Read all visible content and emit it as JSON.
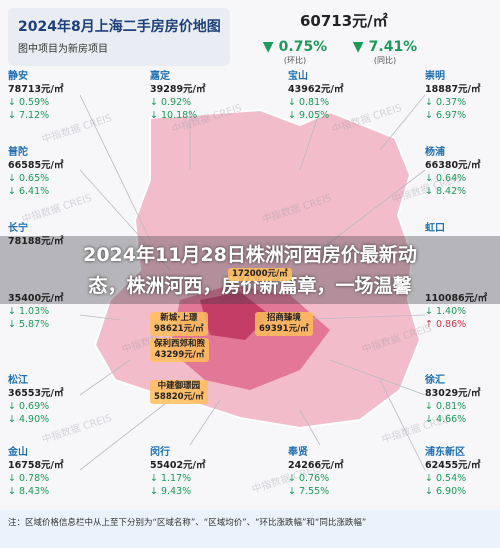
{
  "header": {
    "title": "2024年8月上海二手房房价地图",
    "subtitle": "图中项目为新房项目",
    "avg_price": "60713元/㎡",
    "mom": {
      "change": "0.75%",
      "label": "(环比)"
    },
    "yoy": {
      "change": "7.41%",
      "label": "(同比)"
    }
  },
  "districts": [
    {
      "name": "静安",
      "price": "78713元/㎡",
      "mom": "↓ 0.59%",
      "yoy": "↓ 7.12%"
    },
    {
      "name": "普陀",
      "price": "66585元/㎡",
      "mom": "↓ 0.65%",
      "yoy": "↓ 6.41%"
    },
    {
      "name": "长宁",
      "price": "78188元/㎡"
    },
    {
      "price": "35400元/㎡",
      "mom": "↓ 1.03%",
      "yoy": "↓ 5.87%"
    },
    {
      "name": "松江",
      "price": "36553元/㎡",
      "mom": "↓ 0.69%",
      "yoy": "↓ 4.90%"
    },
    {
      "name": "金山",
      "price": "16758元/㎡",
      "mom": "↓ 0.78%",
      "yoy": "↓ 8.43%"
    },
    {
      "name": "嘉定",
      "price": "39289元/㎡",
      "mom": "↓ 0.92%",
      "yoy": "↓ 10.18%"
    },
    {
      "name": "宝山",
      "price": "43962元/㎡",
      "mom": "↓ 0.81%",
      "yoy": "↓ 9.05%"
    },
    {
      "name": "崇明",
      "price": "18887元/㎡",
      "mom": "↓ 0.37%",
      "yoy": "↓ 6.97%"
    },
    {
      "name": "杨浦",
      "price": "66380元/㎡",
      "mom": "↓ 0.64%",
      "yoy": "↓ 8.42%"
    },
    {
      "name": "虹口"
    },
    {
      "price": "110086元/㎡",
      "mom": "↓ 1.40%",
      "yoy": "↑ 0.86%"
    },
    {
      "name": "徐汇",
      "price": "83029元/㎡",
      "mom": "↓ 0.81%",
      "yoy": "↓ 4.66%"
    },
    {
      "name": "浦东新区",
      "price": "62455元/㎡",
      "mom": "↓ 0.54%",
      "yoy": "↓ 6.90%"
    },
    {
      "name": "闵行",
      "price": "55402元/㎡",
      "mom": "↓ 1.17%",
      "yoy": "↓ 9.43%"
    },
    {
      "name": "奉贤",
      "price": "24266元/㎡",
      "mom": "↓ 0.76%",
      "yoy": "↓ 7.55%"
    }
  ],
  "projects": [
    {
      "price": "172000元/㎡"
    },
    {
      "name": "新城·上璟",
      "price": "98621元/㎡"
    },
    {
      "name": "招商臻境",
      "price": "69391元/㎡"
    },
    {
      "name": "保利西郊和煦",
      "price": "43299元/㎡"
    },
    {
      "name": "中建御璟园",
      "price": "58820元/㎡"
    }
  ],
  "watermark": "中指数据 CREIS",
  "footnote": "注：区域价格信息栏中从上至下分别为“区域名称”、“区域均价”、“环比涨跌幅”和“同比涨跌幅”",
  "overlay": {
    "lines": [
      "2024年11月28日株洲河西房价最新动",
      "态，株洲河西，房价新篇章，一场温馨"
    ]
  }
}
